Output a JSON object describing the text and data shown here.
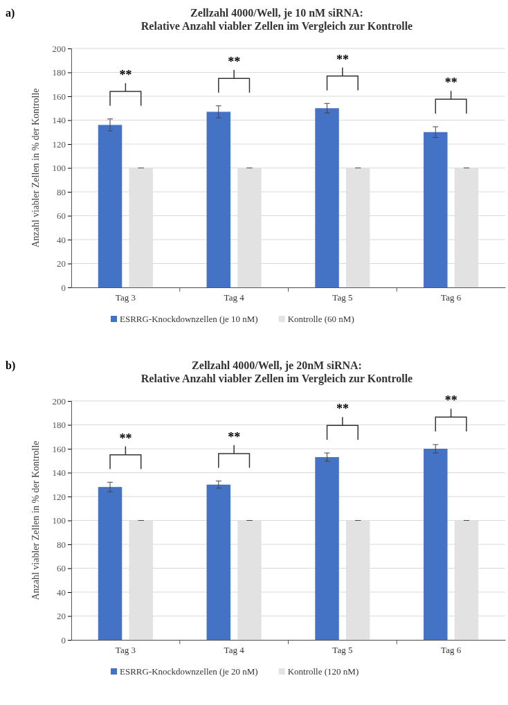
{
  "chart_data": [
    {
      "type": "bar",
      "title": "Zellzahl  4000/Well, je 10 nM siRNA:\nRelative Anzahl  viabler Zellen im Vergleich zur Kontrolle",
      "ylabel": "Anzahl viabler Zellen in % der Kontrolle",
      "categories": [
        "Tag 3",
        "Tag 4",
        "Tag 5",
        "Tag 6"
      ],
      "series": [
        {
          "name": "ESRRG-Knockdownzellen (je 10 nM)",
          "color": "#4472c4",
          "values": [
            136,
            147,
            150,
            130
          ],
          "errors": [
            5,
            5,
            4,
            4.5
          ]
        },
        {
          "name": "Kontrolle (60 nM)",
          "color": "#e2e2e2",
          "values": [
            100,
            100,
            100,
            100
          ],
          "errors": [
            0,
            0,
            0,
            0
          ]
        }
      ],
      "ylim": [
        0,
        200
      ],
      "yticks": [
        0,
        20,
        40,
        60,
        80,
        100,
        120,
        140,
        160,
        180,
        200
      ],
      "grid": "y",
      "legend": "bottom",
      "annotations": [
        "a)",
        "**",
        "**",
        "**",
        "**"
      ]
    },
    {
      "type": "bar",
      "title": "Zellzahl  4000/Well, je 20nM siRNA:\nRelative Anzahl  viabler Zellen im Vergleich zur Kontrolle",
      "ylabel": "Anzahl viabler Zellen in % der Kontrolle",
      "categories": [
        "Tag 3",
        "Tag 4",
        "Tag 5",
        "Tag 6"
      ],
      "series": [
        {
          "name": "ESRRG-Knockdownzellen (je 20 nM)",
          "color": "#4472c4",
          "values": [
            128,
            130,
            153,
            160
          ],
          "errors": [
            4,
            3,
            3.5,
            3.5
          ]
        },
        {
          "name": "Kontrolle (120 nM)",
          "color": "#e2e2e2",
          "values": [
            100,
            100,
            100,
            100
          ],
          "errors": [
            0,
            0,
            0,
            0
          ]
        }
      ],
      "ylim": [
        0,
        200
      ],
      "yticks": [
        0,
        20,
        40,
        60,
        80,
        100,
        120,
        140,
        160,
        180,
        200
      ],
      "grid": "y",
      "legend": "bottom",
      "annotations": [
        "b)",
        "**",
        "**",
        "**",
        "**"
      ]
    }
  ]
}
